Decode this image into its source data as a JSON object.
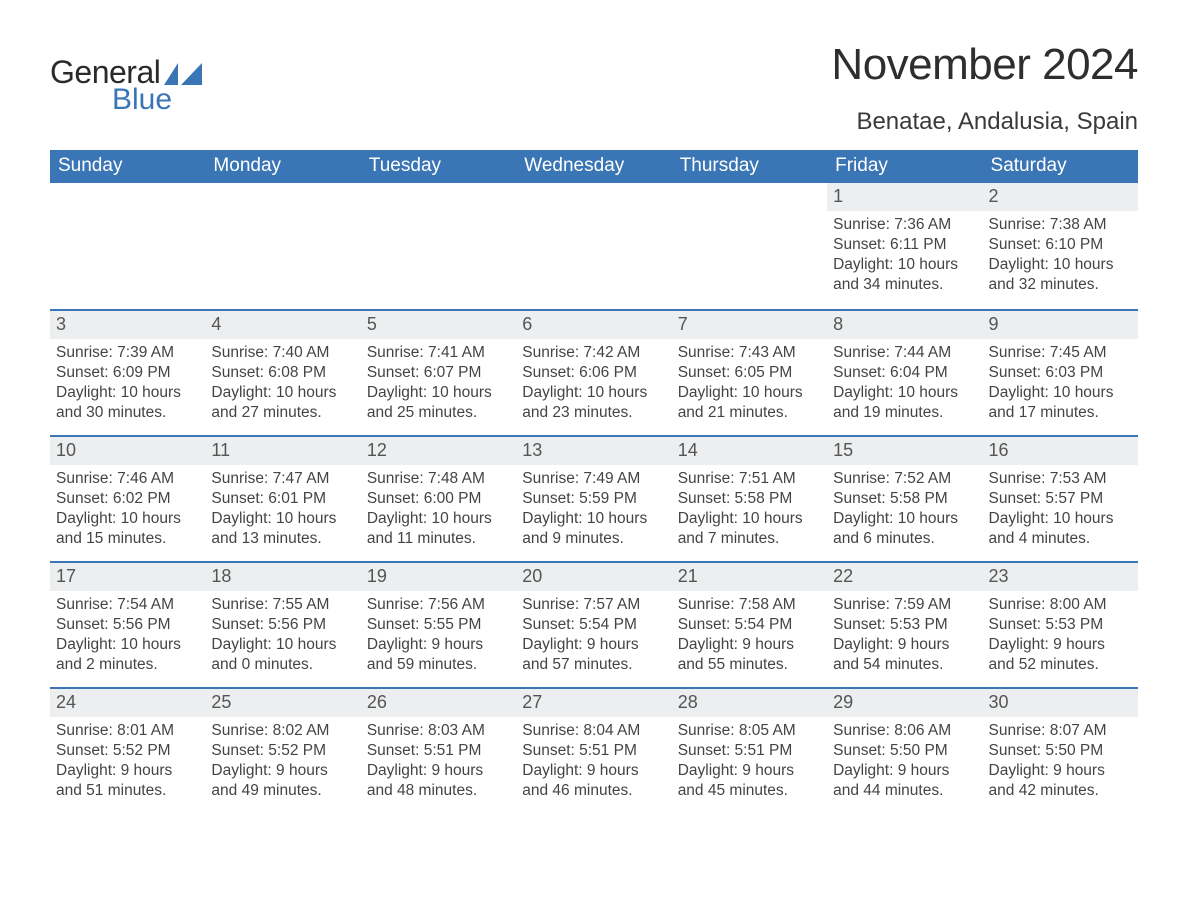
{
  "brand": {
    "text1": "General",
    "text2": "Blue",
    "icon_color": "#3a75b5"
  },
  "title": "November 2024",
  "location": "Benatae, Andalusia, Spain",
  "colors": {
    "header_bg": "#3a75b5",
    "header_text": "#ffffff",
    "row_border": "#3a75b5",
    "daynum_bg": "#eceeef",
    "body_text": "#3a3a3a"
  },
  "weekdays": [
    "Sunday",
    "Monday",
    "Tuesday",
    "Wednesday",
    "Thursday",
    "Friday",
    "Saturday"
  ],
  "weeks": [
    [
      {
        "empty": true
      },
      {
        "empty": true
      },
      {
        "empty": true
      },
      {
        "empty": true
      },
      {
        "empty": true
      },
      {
        "day": "1",
        "sunrise": "Sunrise: 7:36 AM",
        "sunset": "Sunset: 6:11 PM",
        "daylight": "Daylight: 10 hours and 34 minutes."
      },
      {
        "day": "2",
        "sunrise": "Sunrise: 7:38 AM",
        "sunset": "Sunset: 6:10 PM",
        "daylight": "Daylight: 10 hours and 32 minutes."
      }
    ],
    [
      {
        "day": "3",
        "sunrise": "Sunrise: 7:39 AM",
        "sunset": "Sunset: 6:09 PM",
        "daylight": "Daylight: 10 hours and 30 minutes."
      },
      {
        "day": "4",
        "sunrise": "Sunrise: 7:40 AM",
        "sunset": "Sunset: 6:08 PM",
        "daylight": "Daylight: 10 hours and 27 minutes."
      },
      {
        "day": "5",
        "sunrise": "Sunrise: 7:41 AM",
        "sunset": "Sunset: 6:07 PM",
        "daylight": "Daylight: 10 hours and 25 minutes."
      },
      {
        "day": "6",
        "sunrise": "Sunrise: 7:42 AM",
        "sunset": "Sunset: 6:06 PM",
        "daylight": "Daylight: 10 hours and 23 minutes."
      },
      {
        "day": "7",
        "sunrise": "Sunrise: 7:43 AM",
        "sunset": "Sunset: 6:05 PM",
        "daylight": "Daylight: 10 hours and 21 minutes."
      },
      {
        "day": "8",
        "sunrise": "Sunrise: 7:44 AM",
        "sunset": "Sunset: 6:04 PM",
        "daylight": "Daylight: 10 hours and 19 minutes."
      },
      {
        "day": "9",
        "sunrise": "Sunrise: 7:45 AM",
        "sunset": "Sunset: 6:03 PM",
        "daylight": "Daylight: 10 hours and 17 minutes."
      }
    ],
    [
      {
        "day": "10",
        "sunrise": "Sunrise: 7:46 AM",
        "sunset": "Sunset: 6:02 PM",
        "daylight": "Daylight: 10 hours and 15 minutes."
      },
      {
        "day": "11",
        "sunrise": "Sunrise: 7:47 AM",
        "sunset": "Sunset: 6:01 PM",
        "daylight": "Daylight: 10 hours and 13 minutes."
      },
      {
        "day": "12",
        "sunrise": "Sunrise: 7:48 AM",
        "sunset": "Sunset: 6:00 PM",
        "daylight": "Daylight: 10 hours and 11 minutes."
      },
      {
        "day": "13",
        "sunrise": "Sunrise: 7:49 AM",
        "sunset": "Sunset: 5:59 PM",
        "daylight": "Daylight: 10 hours and 9 minutes."
      },
      {
        "day": "14",
        "sunrise": "Sunrise: 7:51 AM",
        "sunset": "Sunset: 5:58 PM",
        "daylight": "Daylight: 10 hours and 7 minutes."
      },
      {
        "day": "15",
        "sunrise": "Sunrise: 7:52 AM",
        "sunset": "Sunset: 5:58 PM",
        "daylight": "Daylight: 10 hours and 6 minutes."
      },
      {
        "day": "16",
        "sunrise": "Sunrise: 7:53 AM",
        "sunset": "Sunset: 5:57 PM",
        "daylight": "Daylight: 10 hours and 4 minutes."
      }
    ],
    [
      {
        "day": "17",
        "sunrise": "Sunrise: 7:54 AM",
        "sunset": "Sunset: 5:56 PM",
        "daylight": "Daylight: 10 hours and 2 minutes."
      },
      {
        "day": "18",
        "sunrise": "Sunrise: 7:55 AM",
        "sunset": "Sunset: 5:56 PM",
        "daylight": "Daylight: 10 hours and 0 minutes."
      },
      {
        "day": "19",
        "sunrise": "Sunrise: 7:56 AM",
        "sunset": "Sunset: 5:55 PM",
        "daylight": "Daylight: 9 hours and 59 minutes."
      },
      {
        "day": "20",
        "sunrise": "Sunrise: 7:57 AM",
        "sunset": "Sunset: 5:54 PM",
        "daylight": "Daylight: 9 hours and 57 minutes."
      },
      {
        "day": "21",
        "sunrise": "Sunrise: 7:58 AM",
        "sunset": "Sunset: 5:54 PM",
        "daylight": "Daylight: 9 hours and 55 minutes."
      },
      {
        "day": "22",
        "sunrise": "Sunrise: 7:59 AM",
        "sunset": "Sunset: 5:53 PM",
        "daylight": "Daylight: 9 hours and 54 minutes."
      },
      {
        "day": "23",
        "sunrise": "Sunrise: 8:00 AM",
        "sunset": "Sunset: 5:53 PM",
        "daylight": "Daylight: 9 hours and 52 minutes."
      }
    ],
    [
      {
        "day": "24",
        "sunrise": "Sunrise: 8:01 AM",
        "sunset": "Sunset: 5:52 PM",
        "daylight": "Daylight: 9 hours and 51 minutes."
      },
      {
        "day": "25",
        "sunrise": "Sunrise: 8:02 AM",
        "sunset": "Sunset: 5:52 PM",
        "daylight": "Daylight: 9 hours and 49 minutes."
      },
      {
        "day": "26",
        "sunrise": "Sunrise: 8:03 AM",
        "sunset": "Sunset: 5:51 PM",
        "daylight": "Daylight: 9 hours and 48 minutes."
      },
      {
        "day": "27",
        "sunrise": "Sunrise: 8:04 AM",
        "sunset": "Sunset: 5:51 PM",
        "daylight": "Daylight: 9 hours and 46 minutes."
      },
      {
        "day": "28",
        "sunrise": "Sunrise: 8:05 AM",
        "sunset": "Sunset: 5:51 PM",
        "daylight": "Daylight: 9 hours and 45 minutes."
      },
      {
        "day": "29",
        "sunrise": "Sunrise: 8:06 AM",
        "sunset": "Sunset: 5:50 PM",
        "daylight": "Daylight: 9 hours and 44 minutes."
      },
      {
        "day": "30",
        "sunrise": "Sunrise: 8:07 AM",
        "sunset": "Sunset: 5:50 PM",
        "daylight": "Daylight: 9 hours and 42 minutes."
      }
    ]
  ]
}
